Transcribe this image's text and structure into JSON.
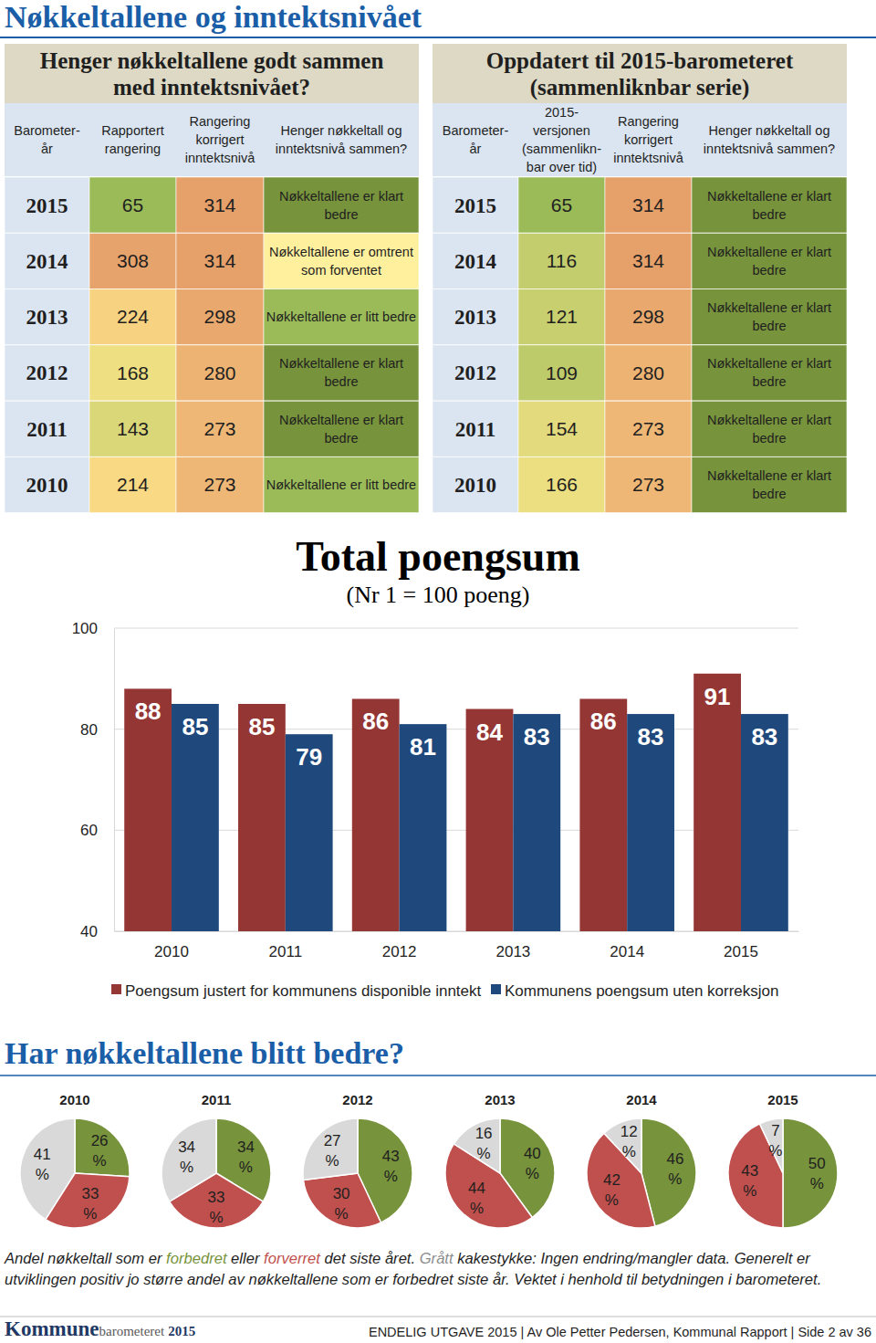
{
  "title": "Nøkkeltallene og inntektsnivået",
  "tables": [
    {
      "title": "Henger nøkkeltallene godt sammen\nmed inntektsnivået?",
      "headers": [
        "Barometer-\når",
        "Rapportert\nrangering",
        "Rangering\nkorrigert\ninntektsnivå",
        "Henger nøkkeltall og\ninntektsnivå sammen?"
      ],
      "rows": [
        [
          2015,
          65,
          314,
          "Nøkkeltallene er klart\nbedre"
        ],
        [
          2014,
          308,
          314,
          "Nøkkeltallene er omtrent\nsom forventet"
        ],
        [
          2013,
          224,
          298,
          "Nøkkeltallene er litt bedre"
        ],
        [
          2012,
          168,
          280,
          "Nøkkeltallene er klart\nbedre"
        ],
        [
          2011,
          143,
          273,
          "Nøkkeltallene er klart\nbedre"
        ],
        [
          2010,
          214,
          273,
          "Nøkkeltallene er litt bedre"
        ]
      ],
      "colors": [
        "#77933c",
        "#fff09e",
        "#9bbb59",
        "#77933c",
        "#77933c",
        "#9bbb59"
      ]
    },
    {
      "title": "Oppdatert til 2015-barometeret\n(sammenliknbar serie)",
      "headers": [
        "Barometer-\når",
        "2015-\nversjonen\n(sammenlikn-\nbar over tid)",
        "Rangering\nkorrigert\ninntektsnivå",
        "Henger nøkkeltall og\ninntektsnivå sammen?"
      ],
      "rows": [
        [
          2015,
          65,
          314,
          "Nøkkeltallene er klart\nbedre"
        ],
        [
          2014,
          116,
          314,
          "Nøkkeltallene er klart\nbedre"
        ],
        [
          2013,
          121,
          298,
          "Nøkkeltallene er klart\nbedre"
        ],
        [
          2012,
          109,
          280,
          "Nøkkeltallene er klart\nbedre"
        ],
        [
          2011,
          154,
          273,
          "Nøkkeltallene er klart\nbedre"
        ],
        [
          2010,
          166,
          273,
          "Nøkkeltallene er klart\nbedre"
        ]
      ],
      "colors": [
        "#77933c",
        "#77933c",
        "#77933c",
        "#77933c",
        "#77933c",
        "#77933c"
      ]
    }
  ],
  "chart_data": [
    {
      "type": "bar",
      "title": "Total poengsum",
      "subtitle": "(Nr 1 = 100 poeng)",
      "categories": [
        "2010",
        "2011",
        "2012",
        "2013",
        "2014",
        "2015"
      ],
      "series": [
        {
          "name": "Poengsum justert for kommunens disponible inntekt",
          "color": "#943634",
          "values": [
            88,
            85,
            86,
            84,
            86,
            91
          ]
        },
        {
          "name": "Kommunens poengsum uten korreksjon",
          "color": "#1f497d",
          "values": [
            85,
            79,
            81,
            83,
            83,
            83
          ]
        }
      ],
      "ylim": [
        40,
        100
      ],
      "yticks": [
        40,
        60,
        80,
        100
      ],
      "grid": true,
      "data_labels": true,
      "legend": "bottom"
    },
    {
      "type": "pie",
      "title": "2010",
      "values": [
        26,
        33,
        41
      ],
      "value_labels": [
        "26 %",
        "33 %",
        "41 %"
      ],
      "colors": [
        "#77933c",
        "#c0504d",
        "#d9d9d9"
      ]
    },
    {
      "type": "pie",
      "title": "2011",
      "values": [
        34,
        33,
        34
      ],
      "value_labels": [
        "34 %",
        "33 %",
        "34 %"
      ],
      "colors": [
        "#77933c",
        "#c0504d",
        "#d9d9d9"
      ]
    },
    {
      "type": "pie",
      "title": "2012",
      "values": [
        43,
        30,
        27
      ],
      "value_labels": [
        "43 %",
        "30 %",
        "27 %"
      ],
      "colors": [
        "#77933c",
        "#c0504d",
        "#d9d9d9"
      ]
    },
    {
      "type": "pie",
      "title": "2013",
      "values": [
        40,
        44,
        16
      ],
      "value_labels": [
        "40 %",
        "44 %",
        "16 %"
      ],
      "colors": [
        "#77933c",
        "#c0504d",
        "#d9d9d9"
      ]
    },
    {
      "type": "pie",
      "title": "2014",
      "values": [
        46,
        42,
        12
      ],
      "value_labels": [
        "46 %",
        "42 %",
        "12 %"
      ],
      "colors": [
        "#77933c",
        "#c0504d",
        "#d9d9d9"
      ]
    },
    {
      "type": "pie",
      "title": "2015",
      "values": [
        50,
        43,
        7
      ],
      "value_labels": [
        "50 %",
        "43 %",
        "7 %"
      ],
      "colors": [
        "#77933c",
        "#c0504d",
        "#d9d9d9"
      ]
    }
  ],
  "section_title": "Har nøkkeltallene blitt bedre?",
  "caption": [
    {
      "text": "Andel nøkkeltall som er "
    },
    {
      "text": "forbedret",
      "color": "#77933c"
    },
    {
      "text": " eller "
    },
    {
      "text": "forverret",
      "color": "#c0504d"
    },
    {
      "text": " det siste året. "
    },
    {
      "text": "Grått",
      "color": "#8c8c8c"
    },
    {
      "text": " kakestykke: Ingen endring/mangler data. Generelt er utviklingen positiv jo større andel av nøkkeltallene som er forbedret siste år. Vektet i henhold til betydningen i barometeret."
    }
  ],
  "footer": {
    "logo": [
      "Kommune",
      "barometeret",
      "2015"
    ],
    "text": "ENDELIG UTGAVE 2015 | Av Ole Petter Pedersen, Kommunal Rapport | Side 2 av 36"
  }
}
